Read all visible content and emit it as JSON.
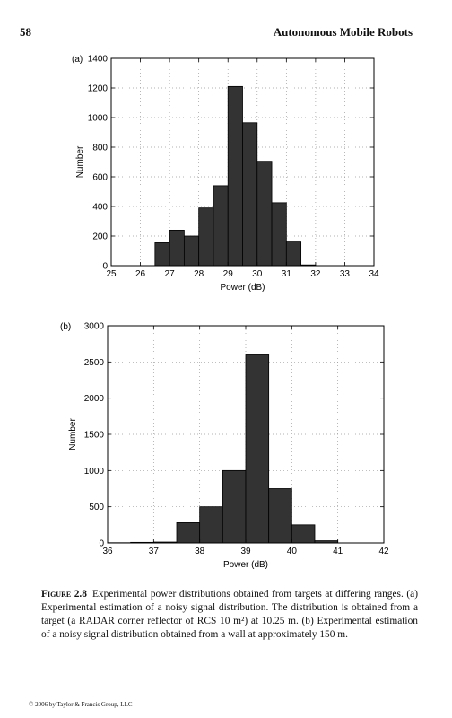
{
  "header": {
    "page_number": "58",
    "running_title": "Autonomous Mobile Robots"
  },
  "chart_data": [
    {
      "type": "bar",
      "panel_label": "(a)",
      "xlabel": "Power (dB)",
      "ylabel": "Number",
      "xlim": [
        25,
        34
      ],
      "ylim": [
        0,
        1400
      ],
      "x_ticks": [
        25,
        26,
        27,
        28,
        29,
        30,
        31,
        32,
        33,
        34
      ],
      "y_ticks": [
        0,
        200,
        400,
        600,
        800,
        1000,
        1200,
        1400
      ],
      "bin_width": 0.5,
      "bins_start": [
        26.5,
        27.0,
        27.5,
        28.0,
        28.5,
        29.0,
        29.5,
        30.0,
        30.5,
        31.0,
        31.5
      ],
      "values": [
        155,
        240,
        200,
        390,
        540,
        1210,
        965,
        705,
        425,
        160,
        5
      ],
      "grid": true,
      "bar_color": "#333333"
    },
    {
      "type": "bar",
      "panel_label": "(b)",
      "xlabel": "Power (dB)",
      "ylabel": "Number",
      "xlim": [
        36,
        42
      ],
      "ylim": [
        0,
        3000
      ],
      "x_ticks": [
        36,
        37,
        38,
        39,
        40,
        41,
        42
      ],
      "y_ticks": [
        0,
        500,
        1000,
        1500,
        2000,
        2500,
        3000
      ],
      "bin_width": 0.5,
      "bins_start": [
        36.0,
        36.5,
        37.0,
        37.5,
        38.0,
        38.5,
        39.0,
        39.5,
        40.0,
        40.5,
        41.0,
        41.5
      ],
      "values": [
        3,
        8,
        12,
        280,
        500,
        1000,
        2610,
        750,
        250,
        30,
        0,
        0
      ],
      "grid": true,
      "bar_color": "#333333"
    }
  ],
  "caption": {
    "label": "Figure 2.8",
    "text": "Experimental power distributions obtained from targets at differing ranges. (a) Experimental estimation of a noisy signal distribution. The distribution is obtained from a target (a RADAR corner reflector of RCS 10 m²) at 10.25 m. (b) Experimental estimation of a noisy signal distribution obtained from a wall at approximately 150 m."
  },
  "footer": {
    "copyright": "© 2006 by Taylor & Francis Group, LLC"
  }
}
